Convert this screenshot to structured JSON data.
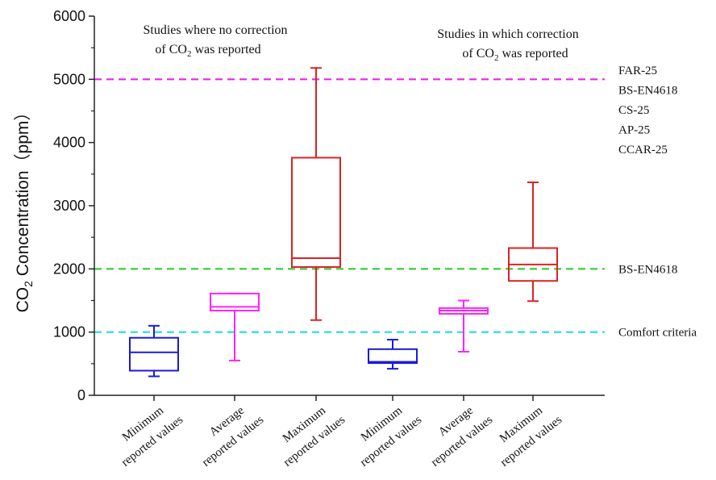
{
  "chart_data": {
    "type": "box",
    "ylabel": {
      "prefix": "CO",
      "sub": "2",
      "suffix": " Concentration（ppm）"
    },
    "ylim": [
      0,
      6000
    ],
    "yticks": [
      0,
      1000,
      2000,
      3000,
      4000,
      5000,
      6000
    ],
    "categories": [
      [
        "Minimum",
        "reported values"
      ],
      [
        "Average",
        "reported values"
      ],
      [
        "Maximum",
        "reported values"
      ],
      [
        "Minimum",
        "reported values"
      ],
      [
        "Average",
        "reported values"
      ],
      [
        "Maximum",
        "reported values"
      ]
    ],
    "boxes": [
      {
        "min": 300,
        "q1": 390,
        "median": 680,
        "q3": 910,
        "max": 1100,
        "color": "#1a1adb"
      },
      {
        "min": 550,
        "q1": 1340,
        "median": 1400,
        "q3": 1610,
        "max": 1610,
        "color": "#ff22ff"
      },
      {
        "min": 1190,
        "q1": 2030,
        "median": 2170,
        "q3": 3760,
        "max": 5180,
        "color": "#dd2222"
      },
      {
        "min": 420,
        "q1": 510,
        "median": 530,
        "q3": 730,
        "max": 880,
        "color": "#1a1adb"
      },
      {
        "min": 690,
        "q1": 1290,
        "median": 1340,
        "q3": 1380,
        "max": 1500,
        "color": "#ff22ff"
      },
      {
        "min": 1490,
        "q1": 1810,
        "median": 2070,
        "q3": 2330,
        "max": 3370,
        "color": "#dd2222"
      }
    ],
    "reference_lines": [
      {
        "value": 5000,
        "color": "#ee22ee",
        "labels": [
          "FAR-25",
          "BS-EN4618",
          "CS-25",
          "AP-25",
          "CCAR-25"
        ]
      },
      {
        "value": 2000,
        "color": "#33cc33",
        "labels": [
          "BS-EN4618"
        ]
      },
      {
        "value": 1000,
        "color": "#22dddd",
        "labels": [
          "Comfort criteria"
        ]
      }
    ],
    "annotations": [
      {
        "lines": [
          {
            "text": "Studies where no correction"
          },
          {
            "prefix": "of CO",
            "sub": "2",
            "suffix": " was reported"
          }
        ]
      },
      {
        "lines": [
          {
            "text": "Studies in which correction"
          },
          {
            "prefix": "of CO",
            "sub": "2",
            "suffix": " was reported"
          }
        ]
      }
    ]
  }
}
